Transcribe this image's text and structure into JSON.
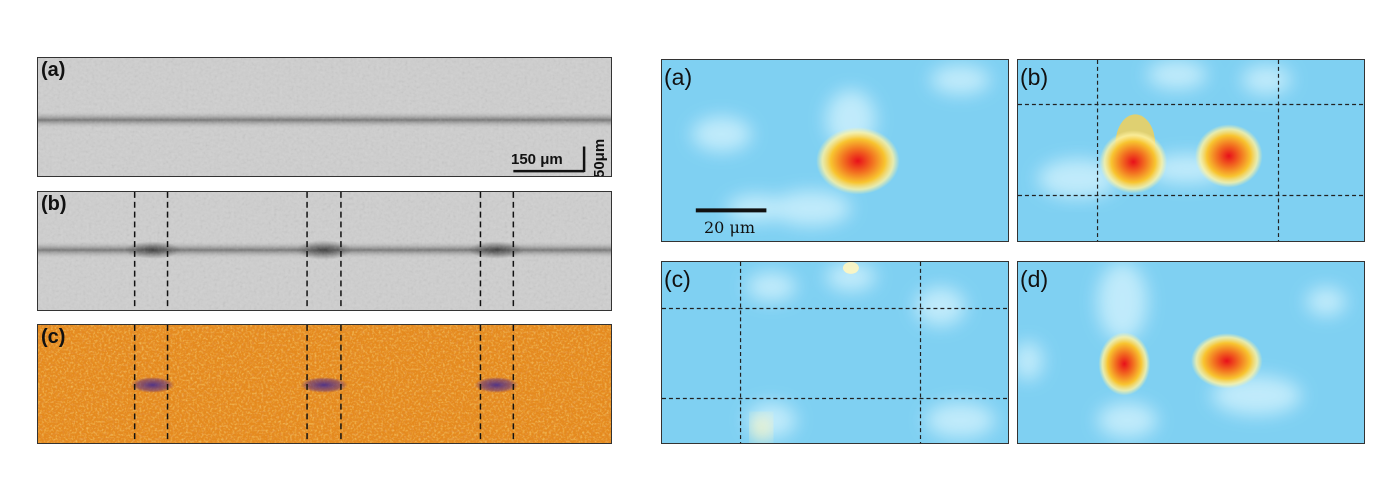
{
  "left_panels": [
    {
      "label": "(a)",
      "scale_horizontal": "150 μm",
      "scale_vertical": "50μm"
    },
    {
      "label": "(b)"
    },
    {
      "label": "(c)"
    }
  ],
  "right_panels": [
    {
      "label": "(a)",
      "scale_text": "20 μm"
    },
    {
      "label": "(b)"
    },
    {
      "label": "(c)"
    },
    {
      "label": "(d)"
    }
  ],
  "colors": {
    "gray_background": "#cfcfcf",
    "gray_band": "#5f5f5f",
    "orange_background": "#e58a1e",
    "purple_spot": "#5a3a8e",
    "map_background": "#7fd0f2",
    "map_hot": "#e8101a",
    "map_warm": "#f8c430"
  }
}
